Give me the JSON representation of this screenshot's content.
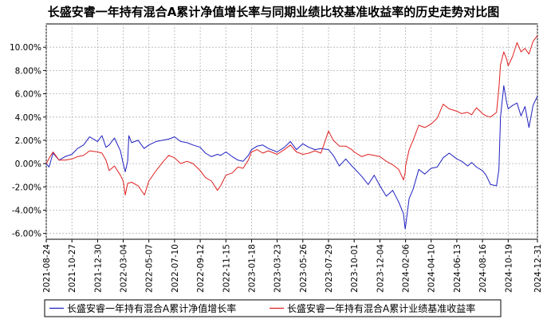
{
  "chart_data": {
    "type": "line",
    "title": "长盛安睿一年持有混合A累计净值增长率与同期业绩比较基准收益率的历史走势对比图",
    "xlabel": "",
    "ylabel": "",
    "ylim": [
      -6.5,
      12
    ],
    "y_ticks": [
      -6,
      -4,
      -2,
      0,
      2,
      4,
      6,
      8,
      10
    ],
    "y_tick_labels": [
      "-6.00%",
      "-4.00%",
      "-2.00%",
      "0.00%",
      "2.00%",
      "4.00%",
      "6.00%",
      "8.00%",
      "10.00%"
    ],
    "x_start": "2021-08-24",
    "x_end": "2024-12-31",
    "x_tick_labels": [
      "2021-08-24",
      "2021-10-27",
      "2021-12-30",
      "2022-03-04",
      "2022-05-07",
      "2022-07-10",
      "2022-09-12",
      "2022-11-15",
      "2023-01-18",
      "2023-03-23",
      "2023-05-26",
      "2023-07-29",
      "2023-10-01",
      "2023-12-04",
      "2024-02-06",
      "2024-04-10",
      "2024-06-13",
      "2024-08-16",
      "2024-10-19",
      "2024-12-31"
    ],
    "grid": true,
    "legend_position": "bottom",
    "series": [
      {
        "name": "长盛安睿一年持有混合A累计净值增长率",
        "color": "#2020c0",
        "points": [
          [
            "2021-08-24",
            0.0
          ],
          [
            "2021-08-31",
            -0.3
          ],
          [
            "2021-09-10",
            0.9
          ],
          [
            "2021-09-25",
            0.3
          ],
          [
            "2021-10-10",
            0.6
          ],
          [
            "2021-10-27",
            0.8
          ],
          [
            "2021-11-10",
            1.3
          ],
          [
            "2021-11-25",
            1.6
          ],
          [
            "2021-12-10",
            2.3
          ],
          [
            "2021-12-30",
            1.9
          ],
          [
            "2022-01-10",
            2.4
          ],
          [
            "2022-01-20",
            1.4
          ],
          [
            "2022-01-28",
            1.6
          ],
          [
            "2022-02-10",
            2.2
          ],
          [
            "2022-02-25",
            1.1
          ],
          [
            "2022-03-04",
            0.0
          ],
          [
            "2022-03-09",
            -0.7
          ],
          [
            "2022-03-15",
            0.2
          ],
          [
            "2022-03-18",
            2.4
          ],
          [
            "2022-03-25",
            1.8
          ],
          [
            "2022-04-10",
            2.0
          ],
          [
            "2022-04-25",
            1.3
          ],
          [
            "2022-05-07",
            1.6
          ],
          [
            "2022-05-25",
            1.9
          ],
          [
            "2022-06-10",
            2.0
          ],
          [
            "2022-06-25",
            2.1
          ],
          [
            "2022-07-10",
            2.3
          ],
          [
            "2022-07-25",
            1.9
          ],
          [
            "2022-08-10",
            1.8
          ],
          [
            "2022-08-25",
            1.6
          ],
          [
            "2022-09-12",
            1.4
          ],
          [
            "2022-09-25",
            0.9
          ],
          [
            "2022-10-10",
            0.6
          ],
          [
            "2022-10-25",
            0.8
          ],
          [
            "2022-11-02",
            0.7
          ],
          [
            "2022-11-15",
            1.0
          ],
          [
            "2022-12-01",
            0.6
          ],
          [
            "2022-12-15",
            0.3
          ],
          [
            "2022-12-28",
            0.2
          ],
          [
            "2023-01-10",
            0.7
          ],
          [
            "2023-01-18",
            1.2
          ],
          [
            "2023-02-01",
            1.5
          ],
          [
            "2023-02-15",
            1.6
          ],
          [
            "2023-03-01",
            1.3
          ],
          [
            "2023-03-23",
            1.0
          ],
          [
            "2023-04-10",
            1.4
          ],
          [
            "2023-04-25",
            1.9
          ],
          [
            "2023-05-10",
            1.2
          ],
          [
            "2023-05-26",
            1.7
          ],
          [
            "2023-06-10",
            1.4
          ],
          [
            "2023-06-25",
            1.2
          ],
          [
            "2023-07-10",
            1.3
          ],
          [
            "2023-07-29",
            1.2
          ],
          [
            "2023-08-10",
            0.7
          ],
          [
            "2023-08-25",
            -0.2
          ],
          [
            "2023-09-10",
            0.4
          ],
          [
            "2023-09-25",
            -0.2
          ],
          [
            "2023-10-01",
            -0.4
          ],
          [
            "2023-10-20",
            -1.1
          ],
          [
            "2023-11-05",
            -1.8
          ],
          [
            "2023-11-20",
            -1.0
          ],
          [
            "2023-12-04",
            -1.9
          ],
          [
            "2023-12-20",
            -2.8
          ],
          [
            "2024-01-05",
            -2.3
          ],
          [
            "2024-01-20",
            -3.3
          ],
          [
            "2024-02-01",
            -4.3
          ],
          [
            "2024-02-05",
            -5.6
          ],
          [
            "2024-02-06",
            -5.4
          ],
          [
            "2024-02-15",
            -3.0
          ],
          [
            "2024-02-25",
            -2.2
          ],
          [
            "2024-03-10",
            -0.5
          ],
          [
            "2024-03-25",
            -0.9
          ],
          [
            "2024-04-10",
            -0.4
          ],
          [
            "2024-04-25",
            -0.3
          ],
          [
            "2024-05-10",
            0.5
          ],
          [
            "2024-05-25",
            0.9
          ],
          [
            "2024-06-13",
            0.4
          ],
          [
            "2024-06-25",
            0.2
          ],
          [
            "2024-07-10",
            -0.2
          ],
          [
            "2024-07-20",
            0.1
          ],
          [
            "2024-08-01",
            -0.3
          ],
          [
            "2024-08-16",
            -0.6
          ],
          [
            "2024-08-25",
            -1.0
          ],
          [
            "2024-09-05",
            -1.8
          ],
          [
            "2024-09-20",
            -1.9
          ],
          [
            "2024-09-26",
            -0.5
          ],
          [
            "2024-09-30",
            4.0
          ],
          [
            "2024-10-08",
            6.7
          ],
          [
            "2024-10-15",
            5.3
          ],
          [
            "2024-10-19",
            4.7
          ],
          [
            "2024-10-30",
            5.0
          ],
          [
            "2024-11-10",
            5.2
          ],
          [
            "2024-11-20",
            4.1
          ],
          [
            "2024-11-30",
            4.9
          ],
          [
            "2024-12-10",
            3.1
          ],
          [
            "2024-12-20",
            5.0
          ],
          [
            "2024-12-31",
            5.8
          ]
        ]
      },
      {
        "name": "长盛安睿一年持有混合A累计业绩基准收益率",
        "color": "#e02020",
        "points": [
          [
            "2021-08-24",
            0.0
          ],
          [
            "2021-09-01",
            0.5
          ],
          [
            "2021-09-10",
            1.0
          ],
          [
            "2021-09-25",
            0.3
          ],
          [
            "2021-10-10",
            0.3
          ],
          [
            "2021-10-27",
            0.4
          ],
          [
            "2021-11-10",
            0.6
          ],
          [
            "2021-11-25",
            0.7
          ],
          [
            "2021-12-10",
            1.1
          ],
          [
            "2021-12-30",
            1.0
          ],
          [
            "2022-01-10",
            0.9
          ],
          [
            "2022-01-20",
            0.3
          ],
          [
            "2022-01-28",
            -0.6
          ],
          [
            "2022-02-10",
            -0.2
          ],
          [
            "2022-02-25",
            -1.0
          ],
          [
            "2022-03-04",
            -1.5
          ],
          [
            "2022-03-09",
            -2.7
          ],
          [
            "2022-03-15",
            -1.7
          ],
          [
            "2022-03-25",
            -1.6
          ],
          [
            "2022-04-10",
            -1.9
          ],
          [
            "2022-04-26",
            -2.7
          ],
          [
            "2022-05-07",
            -1.5
          ],
          [
            "2022-05-25",
            -0.6
          ],
          [
            "2022-06-10",
            0.1
          ],
          [
            "2022-06-25",
            0.7
          ],
          [
            "2022-07-10",
            0.5
          ],
          [
            "2022-07-25",
            0.0
          ],
          [
            "2022-08-10",
            0.2
          ],
          [
            "2022-08-25",
            0.0
          ],
          [
            "2022-09-12",
            -0.6
          ],
          [
            "2022-09-25",
            -1.2
          ],
          [
            "2022-10-10",
            -1.5
          ],
          [
            "2022-10-25",
            -2.3
          ],
          [
            "2022-11-02",
            -1.9
          ],
          [
            "2022-11-15",
            -1.0
          ],
          [
            "2022-12-01",
            -0.8
          ],
          [
            "2022-12-15",
            -0.3
          ],
          [
            "2022-12-28",
            -0.4
          ],
          [
            "2023-01-10",
            0.3
          ],
          [
            "2023-01-18",
            1.0
          ],
          [
            "2023-02-01",
            1.2
          ],
          [
            "2023-02-15",
            0.9
          ],
          [
            "2023-03-01",
            1.1
          ],
          [
            "2023-03-23",
            0.8
          ],
          [
            "2023-04-10",
            1.2
          ],
          [
            "2023-04-25",
            1.6
          ],
          [
            "2023-05-10",
            1.0
          ],
          [
            "2023-05-26",
            0.8
          ],
          [
            "2023-06-10",
            0.9
          ],
          [
            "2023-06-25",
            1.1
          ],
          [
            "2023-07-10",
            0.9
          ],
          [
            "2023-07-29",
            2.8
          ],
          [
            "2023-08-10",
            2.0
          ],
          [
            "2023-08-25",
            1.5
          ],
          [
            "2023-09-10",
            1.5
          ],
          [
            "2023-09-25",
            1.2
          ],
          [
            "2023-10-01",
            1.0
          ],
          [
            "2023-10-20",
            0.6
          ],
          [
            "2023-11-05",
            0.8
          ],
          [
            "2023-11-20",
            0.7
          ],
          [
            "2023-12-04",
            0.6
          ],
          [
            "2023-12-20",
            0.2
          ],
          [
            "2024-01-05",
            -0.1
          ],
          [
            "2024-01-20",
            -0.5
          ],
          [
            "2024-02-01",
            -1.4
          ],
          [
            "2024-02-05",
            -0.8
          ],
          [
            "2024-02-06",
            -0.2
          ],
          [
            "2024-02-15",
            1.2
          ],
          [
            "2024-02-25",
            2.0
          ],
          [
            "2024-03-10",
            3.3
          ],
          [
            "2024-03-25",
            3.1
          ],
          [
            "2024-04-10",
            3.4
          ],
          [
            "2024-04-25",
            3.9
          ],
          [
            "2024-05-10",
            5.1
          ],
          [
            "2024-05-25",
            4.7
          ],
          [
            "2024-06-13",
            4.5
          ],
          [
            "2024-06-25",
            4.3
          ],
          [
            "2024-07-10",
            4.4
          ],
          [
            "2024-07-20",
            4.2
          ],
          [
            "2024-08-01",
            4.8
          ],
          [
            "2024-08-16",
            4.3
          ],
          [
            "2024-08-25",
            4.1
          ],
          [
            "2024-09-05",
            4.0
          ],
          [
            "2024-09-20",
            4.4
          ],
          [
            "2024-09-26",
            6.5
          ],
          [
            "2024-09-30",
            8.5
          ],
          [
            "2024-10-08",
            9.6
          ],
          [
            "2024-10-15",
            9.0
          ],
          [
            "2024-10-19",
            8.4
          ],
          [
            "2024-10-30",
            9.2
          ],
          [
            "2024-11-10",
            10.4
          ],
          [
            "2024-11-20",
            9.6
          ],
          [
            "2024-11-30",
            9.9
          ],
          [
            "2024-12-10",
            9.4
          ],
          [
            "2024-12-20",
            10.5
          ],
          [
            "2024-12-31",
            11.0
          ]
        ]
      }
    ]
  }
}
